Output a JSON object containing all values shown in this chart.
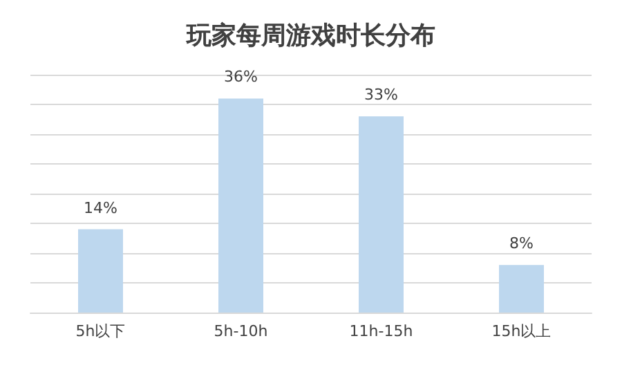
{
  "chart_data": {
    "type": "bar",
    "title": "玩家每周游戏时长分布",
    "categories": [
      "5h以下",
      "5h-10h",
      "11h-15h",
      "15h以上"
    ],
    "values": [
      14,
      36,
      33,
      8
    ],
    "value_labels": [
      "14%",
      "36%",
      "33%",
      "8%"
    ],
    "color": "#bdd7ee",
    "ylim": [
      0,
      40
    ],
    "yticks": [
      0,
      5,
      10,
      15,
      20,
      25,
      30,
      35,
      40
    ],
    "grid": "y",
    "tick_labels": "x"
  }
}
